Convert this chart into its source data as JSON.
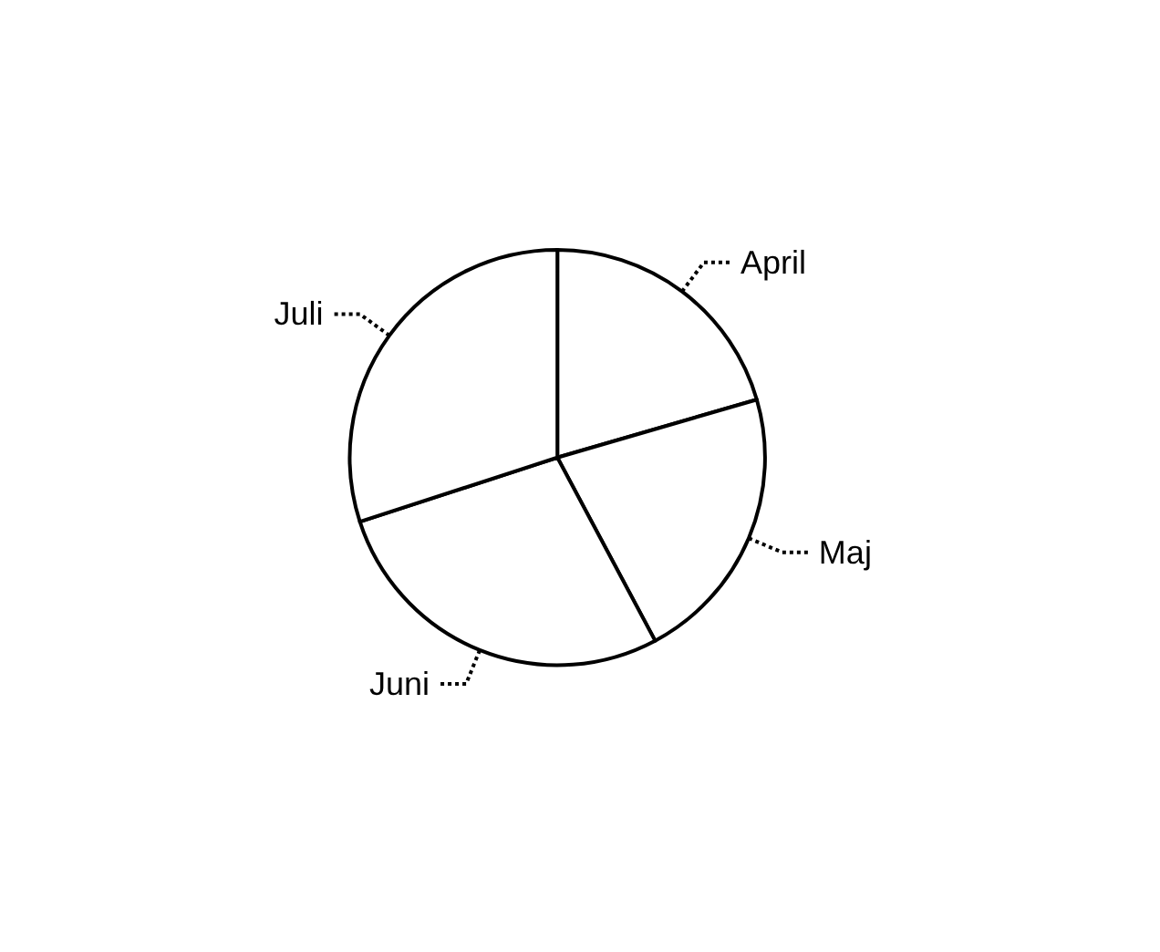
{
  "chart_data": {
    "type": "pie",
    "categories": [
      "April",
      "Maj",
      "Juni",
      "Juli"
    ],
    "values": [
      20.5,
      21.7,
      27.8,
      30.0
    ],
    "colors": [
      "#ffffff",
      "#ffffff",
      "#ffffff",
      "#ffffff"
    ],
    "legend": false
  }
}
